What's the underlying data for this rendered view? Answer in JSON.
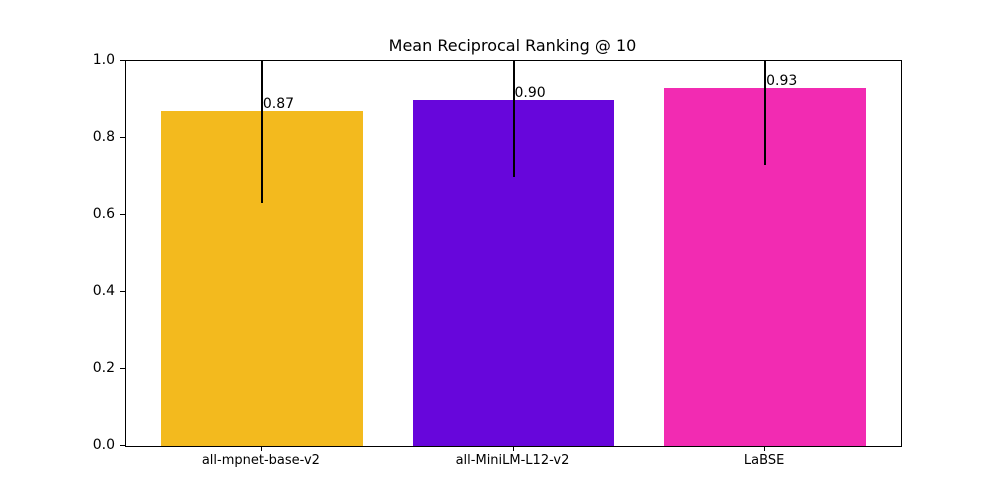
{
  "chart_data": {
    "type": "bar",
    "title": "Mean Reciprocal Ranking @ 10",
    "categories": [
      "all-mpnet-base-v2",
      "all-MiniLM-L12-v2",
      "LaBSE"
    ],
    "values": [
      0.87,
      0.9,
      0.93
    ],
    "value_labels": [
      "0.87",
      "0.90",
      "0.93"
    ],
    "bar_colors": [
      "#f3ba1e",
      "#6706db",
      "#f22bb2"
    ],
    "error_low": [
      0.63,
      0.7,
      0.73
    ],
    "error_high": [
      1.11,
      1.1,
      1.13
    ],
    "error_clipped_at_axis_top": true,
    "xlabel": "",
    "ylabel": "",
    "ylim": [
      0.0,
      1.0
    ],
    "ytick_labels": [
      "0.0",
      "0.2",
      "0.4",
      "0.6",
      "0.8",
      "1.0"
    ],
    "grid": false,
    "legend": false,
    "bar_width_fraction": 0.8
  }
}
